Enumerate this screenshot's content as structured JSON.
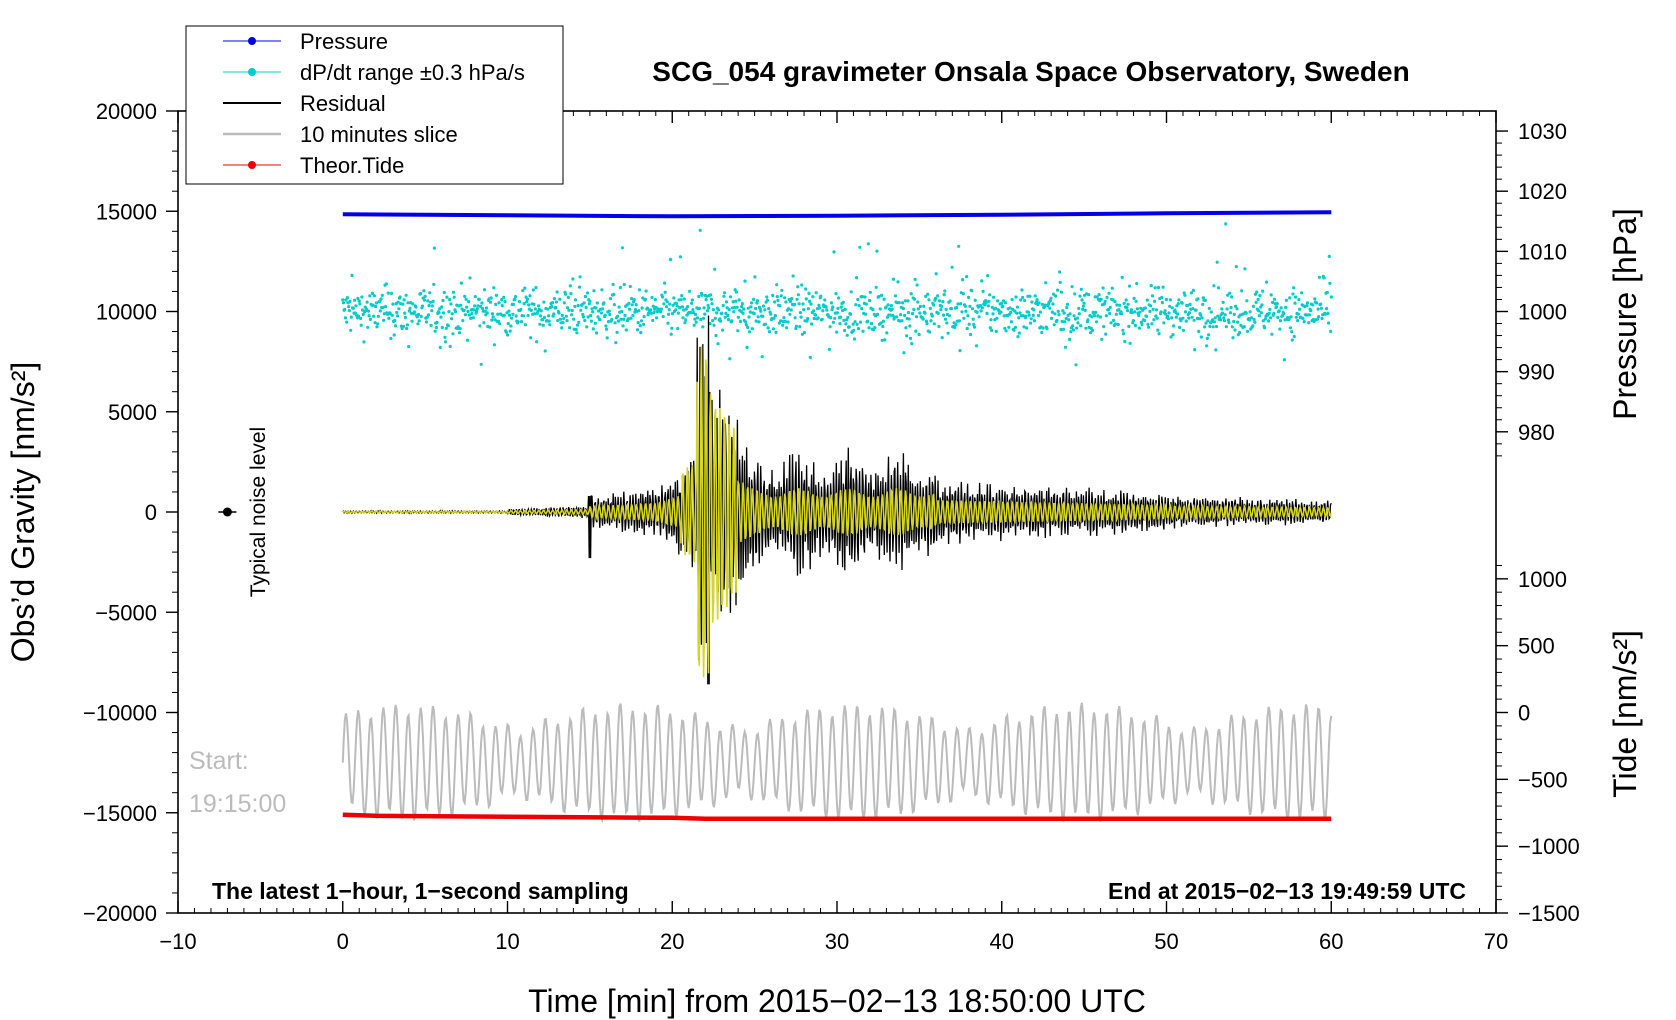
{
  "chart_data": {
    "type": "line",
    "title": "SCG_054 gravimeter Onsala Space Observatory, Sweden",
    "xlabel": "Time [min] from 2015−02−13 18:50:00 UTC",
    "ylabel_left": "Obs’d Gravity [nm/s²]",
    "ylabel_right_pressure": "Pressure [hPa]",
    "ylabel_right_tide": "Tide [nm/s²]",
    "xlim": [
      -10,
      70
    ],
    "ylim_left": [
      -20000,
      20000
    ],
    "xticks": [
      -10,
      0,
      10,
      20,
      30,
      40,
      50,
      60,
      70
    ],
    "xtick_labels": [
      "−10",
      "0",
      "10",
      "20",
      "30",
      "40",
      "50",
      "60",
      "70"
    ],
    "yticks_left": [
      -20000,
      -15000,
      -10000,
      -5000,
      0,
      5000,
      10000,
      15000,
      20000
    ],
    "ytick_labels_left": [
      "−20000",
      "−15000",
      "−10000",
      "−5000",
      "0",
      "5000",
      "10000",
      "15000",
      "20000"
    ],
    "pressure_axis": {
      "ticks": [
        980,
        990,
        1000,
        1010,
        1020,
        1030
      ],
      "labels": [
        "980",
        "990",
        "1000",
        "1010",
        "1020",
        "1030"
      ],
      "note": "1 hPa = 300 nm/s² on left scale, 1000 hPa at 10000"
    },
    "tide_axis": {
      "ticks": [
        -1500,
        -1000,
        -500,
        0,
        500,
        1000
      ],
      "labels": [
        "−1500",
        "−1000",
        "−500",
        "0",
        "500",
        "1000"
      ],
      "note": "1 nm/s² tide = 6.6667 left units, 0 at −10000"
    },
    "legend": [
      {
        "label": "Pressure",
        "color": "#0000ee",
        "marker": true
      },
      {
        "label": "dP/dt range ±0.3 hPa/s",
        "color": "#00cccc",
        "marker": true
      },
      {
        "label": "Residual",
        "color": "#000000",
        "marker": false
      },
      {
        "label": "10 minutes slice",
        "color": "#bbbbbb",
        "marker": false
      },
      {
        "label": "Theor.Tide",
        "color": "#ee0000",
        "marker": true
      }
    ],
    "series": [
      {
        "name": "Pressure",
        "x": [
          0,
          10,
          20,
          30,
          40,
          50,
          60
        ],
        "y": [
          14850,
          14800,
          14750,
          14780,
          14830,
          14900,
          14950
        ]
      },
      {
        "name": "dP/dt range ±0.3 hPa/s",
        "x_range": [
          0,
          60
        ],
        "center": 10000,
        "spread": 1800,
        "note": "scattered points"
      },
      {
        "name": "Residual",
        "x_range": [
          0,
          60
        ],
        "peak_time": 22.2,
        "peak_max": 9800,
        "peak_min": -8600,
        "note": "surface wave arrival near 21-23 min, coda to 60 min"
      },
      {
        "name": "10 minutes slice",
        "x_range": [
          0,
          60
        ],
        "center": -12500,
        "amplitude": 2700
      },
      {
        "name": "Theor.Tide",
        "x": [
          0,
          2,
          10,
          20,
          22,
          40,
          60
        ],
        "y": [
          -15100,
          -15150,
          -15200,
          -15250,
          -15300,
          -15300,
          -15300
        ]
      },
      {
        "name": "Typical noise level",
        "x": [
          -7
        ],
        "y": [
          0
        ]
      }
    ],
    "annotations": {
      "noise_label": "Typical noise level",
      "start_label": "Start:",
      "start_time": "19:15:00",
      "bottom_left": "The latest 1−hour, 1−second sampling",
      "bottom_right": "End at 2015−02−13 19:49:59 UTC"
    },
    "colors": {
      "pressure": "#0000ee",
      "dpdt": "#00cccc",
      "residual": "#000000",
      "slice": "#bbbbbb",
      "tide": "#ee0000",
      "filtered": "#d6d61e"
    }
  }
}
